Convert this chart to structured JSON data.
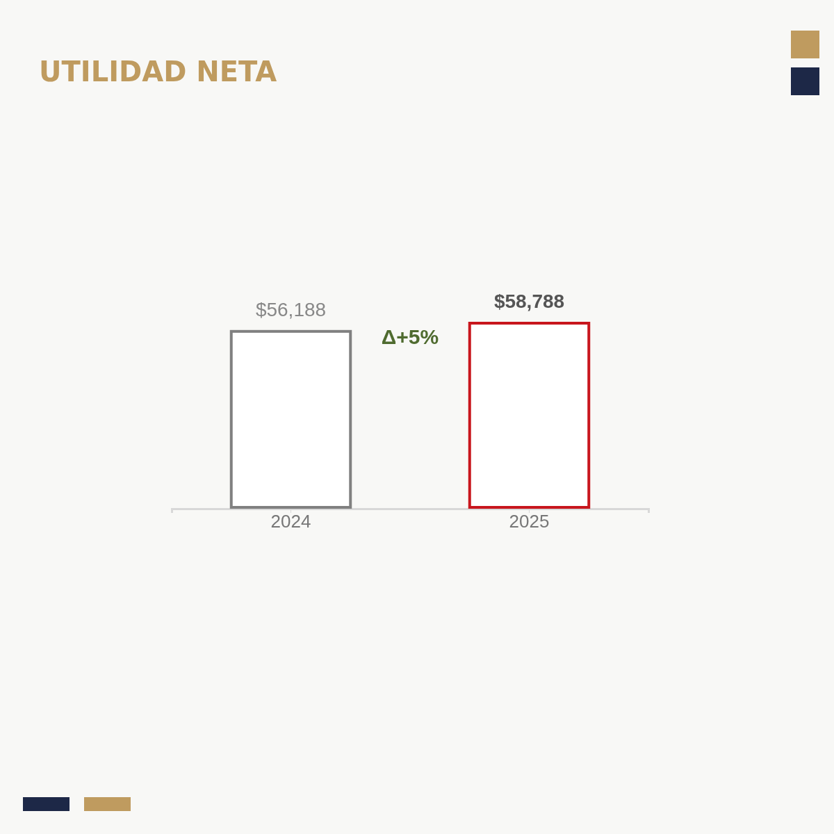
{
  "chart_data": {
    "type": "bar",
    "title": "UTILIDAD NETA",
    "categories": [
      "2024",
      "2025"
    ],
    "values": [
      56188,
      58788
    ],
    "value_labels": [
      "$56,188",
      "$58,788"
    ],
    "colors": [
      "#808080",
      "#c8161d"
    ],
    "tick_labels": "x",
    "annotations": [
      "Δ+5%"
    ]
  }
}
